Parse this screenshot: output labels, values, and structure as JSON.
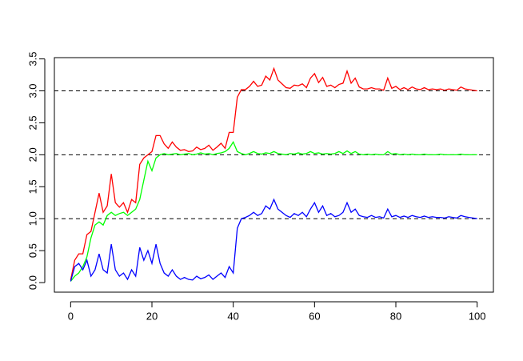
{
  "chart_data": {
    "type": "line",
    "x": [
      0,
      1,
      2,
      3,
      4,
      5,
      6,
      7,
      8,
      9,
      10,
      11,
      12,
      13,
      14,
      15,
      16,
      17,
      18,
      19,
      20,
      21,
      22,
      23,
      24,
      25,
      26,
      27,
      28,
      29,
      30,
      31,
      32,
      33,
      34,
      35,
      36,
      37,
      38,
      39,
      40,
      41,
      42,
      43,
      44,
      45,
      46,
      47,
      48,
      49,
      50,
      51,
      52,
      53,
      54,
      55,
      56,
      57,
      58,
      59,
      60,
      61,
      62,
      63,
      64,
      65,
      66,
      67,
      68,
      69,
      70,
      71,
      72,
      73,
      74,
      75,
      76,
      77,
      78,
      79,
      80,
      81,
      82,
      83,
      84,
      85,
      86,
      87,
      88,
      89,
      90,
      91,
      92,
      93,
      94,
      95,
      96,
      97,
      98,
      99,
      100
    ],
    "series": [
      {
        "color": "#ff0000",
        "values": [
          0.04,
          0.35,
          0.45,
          0.45,
          0.75,
          0.8,
          1.1,
          1.4,
          1.1,
          1.2,
          1.7,
          1.25,
          1.18,
          1.25,
          1.1,
          1.3,
          1.25,
          1.85,
          1.95,
          2.0,
          2.05,
          2.3,
          2.3,
          2.17,
          2.1,
          2.2,
          2.12,
          2.07,
          2.08,
          2.05,
          2.06,
          2.12,
          2.08,
          2.1,
          2.15,
          2.07,
          2.12,
          2.18,
          2.1,
          2.35,
          2.35,
          2.9,
          3.02,
          3.02,
          3.07,
          3.15,
          3.07,
          3.09,
          3.23,
          3.17,
          3.35,
          3.17,
          3.11,
          3.05,
          3.04,
          3.09,
          3.08,
          3.11,
          3.05,
          3.2,
          3.27,
          3.13,
          3.21,
          3.07,
          3.09,
          3.05,
          3.1,
          3.12,
          3.31,
          3.12,
          3.2,
          3.06,
          3.03,
          3.03,
          3.05,
          3.03,
          3.03,
          3.01,
          3.2,
          3.04,
          3.07,
          3.02,
          3.05,
          3.02,
          3.06,
          3.03,
          3.02,
          3.05,
          3.02,
          3.03,
          3.02,
          3.03,
          3.01,
          3.03,
          3.02,
          3.01,
          3.06,
          3.03,
          3.02,
          3.01,
          3.0
        ]
      },
      {
        "color": "#00ff00",
        "values": [
          0.02,
          0.1,
          0.15,
          0.25,
          0.4,
          0.7,
          0.9,
          0.95,
          0.9,
          1.05,
          1.1,
          1.05,
          1.08,
          1.1,
          1.05,
          1.1,
          1.15,
          1.3,
          1.6,
          1.9,
          1.75,
          1.95,
          2.0,
          2.02,
          2.0,
          2.01,
          2.02,
          2.0,
          2.01,
          2.02,
          2.0,
          2.01,
          2.03,
          2.01,
          2.02,
          2.0,
          2.02,
          2.03,
          2.05,
          2.1,
          2.2,
          2.05,
          2.02,
          2.0,
          2.02,
          2.05,
          2.02,
          2.01,
          2.03,
          2.02,
          2.05,
          2.02,
          2.01,
          2.0,
          2.02,
          2.01,
          2.03,
          2.01,
          2.02,
          2.05,
          2.02,
          2.03,
          2.01,
          2.02,
          2.01,
          2.02,
          2.05,
          2.02,
          2.06,
          2.02,
          2.05,
          2.01,
          2.0,
          2.01,
          2.0,
          2.01,
          2.0,
          2.0,
          2.05,
          2.01,
          2.02,
          2.0,
          2.01,
          2.0,
          2.01,
          2.0,
          2.0,
          2.01,
          2.0,
          2.0,
          2.0,
          2.01,
          2.0,
          2.0,
          2.0,
          2.0,
          2.01,
          2.0,
          2.0,
          2.0,
          2.0
        ]
      },
      {
        "color": "#0000ff",
        "values": [
          0.02,
          0.25,
          0.3,
          0.2,
          0.35,
          0.1,
          0.2,
          0.45,
          0.2,
          0.15,
          0.6,
          0.2,
          0.1,
          0.15,
          0.05,
          0.2,
          0.1,
          0.55,
          0.35,
          0.5,
          0.3,
          0.6,
          0.3,
          0.15,
          0.1,
          0.2,
          0.1,
          0.05,
          0.08,
          0.05,
          0.04,
          0.1,
          0.06,
          0.08,
          0.12,
          0.05,
          0.1,
          0.15,
          0.08,
          0.25,
          0.15,
          0.85,
          1.0,
          1.02,
          1.05,
          1.1,
          1.05,
          1.08,
          1.2,
          1.15,
          1.3,
          1.15,
          1.1,
          1.05,
          1.02,
          1.08,
          1.05,
          1.1,
          1.03,
          1.15,
          1.25,
          1.1,
          1.2,
          1.05,
          1.08,
          1.03,
          1.05,
          1.1,
          1.25,
          1.1,
          1.15,
          1.05,
          1.03,
          1.02,
          1.05,
          1.02,
          1.03,
          1.01,
          1.15,
          1.03,
          1.05,
          1.02,
          1.04,
          1.02,
          1.05,
          1.03,
          1.02,
          1.04,
          1.02,
          1.03,
          1.02,
          1.02,
          1.01,
          1.03,
          1.02,
          1.01,
          1.05,
          1.03,
          1.02,
          1.01,
          1.0
        ]
      }
    ],
    "hlines": [
      1,
      2,
      3
    ],
    "xlim": [
      -4,
      104
    ],
    "ylim": [
      -0.15,
      3.52
    ],
    "xticks": [
      0,
      20,
      40,
      60,
      80,
      100
    ],
    "yticks": [
      {
        "value": 0,
        "label": "0.0"
      },
      0.5,
      {
        "value": 1,
        "label": "1.0"
      },
      1.5,
      {
        "value": 2,
        "label": "2.0"
      },
      2.5,
      {
        "value": 3,
        "label": "3.0"
      },
      3.5
    ]
  }
}
